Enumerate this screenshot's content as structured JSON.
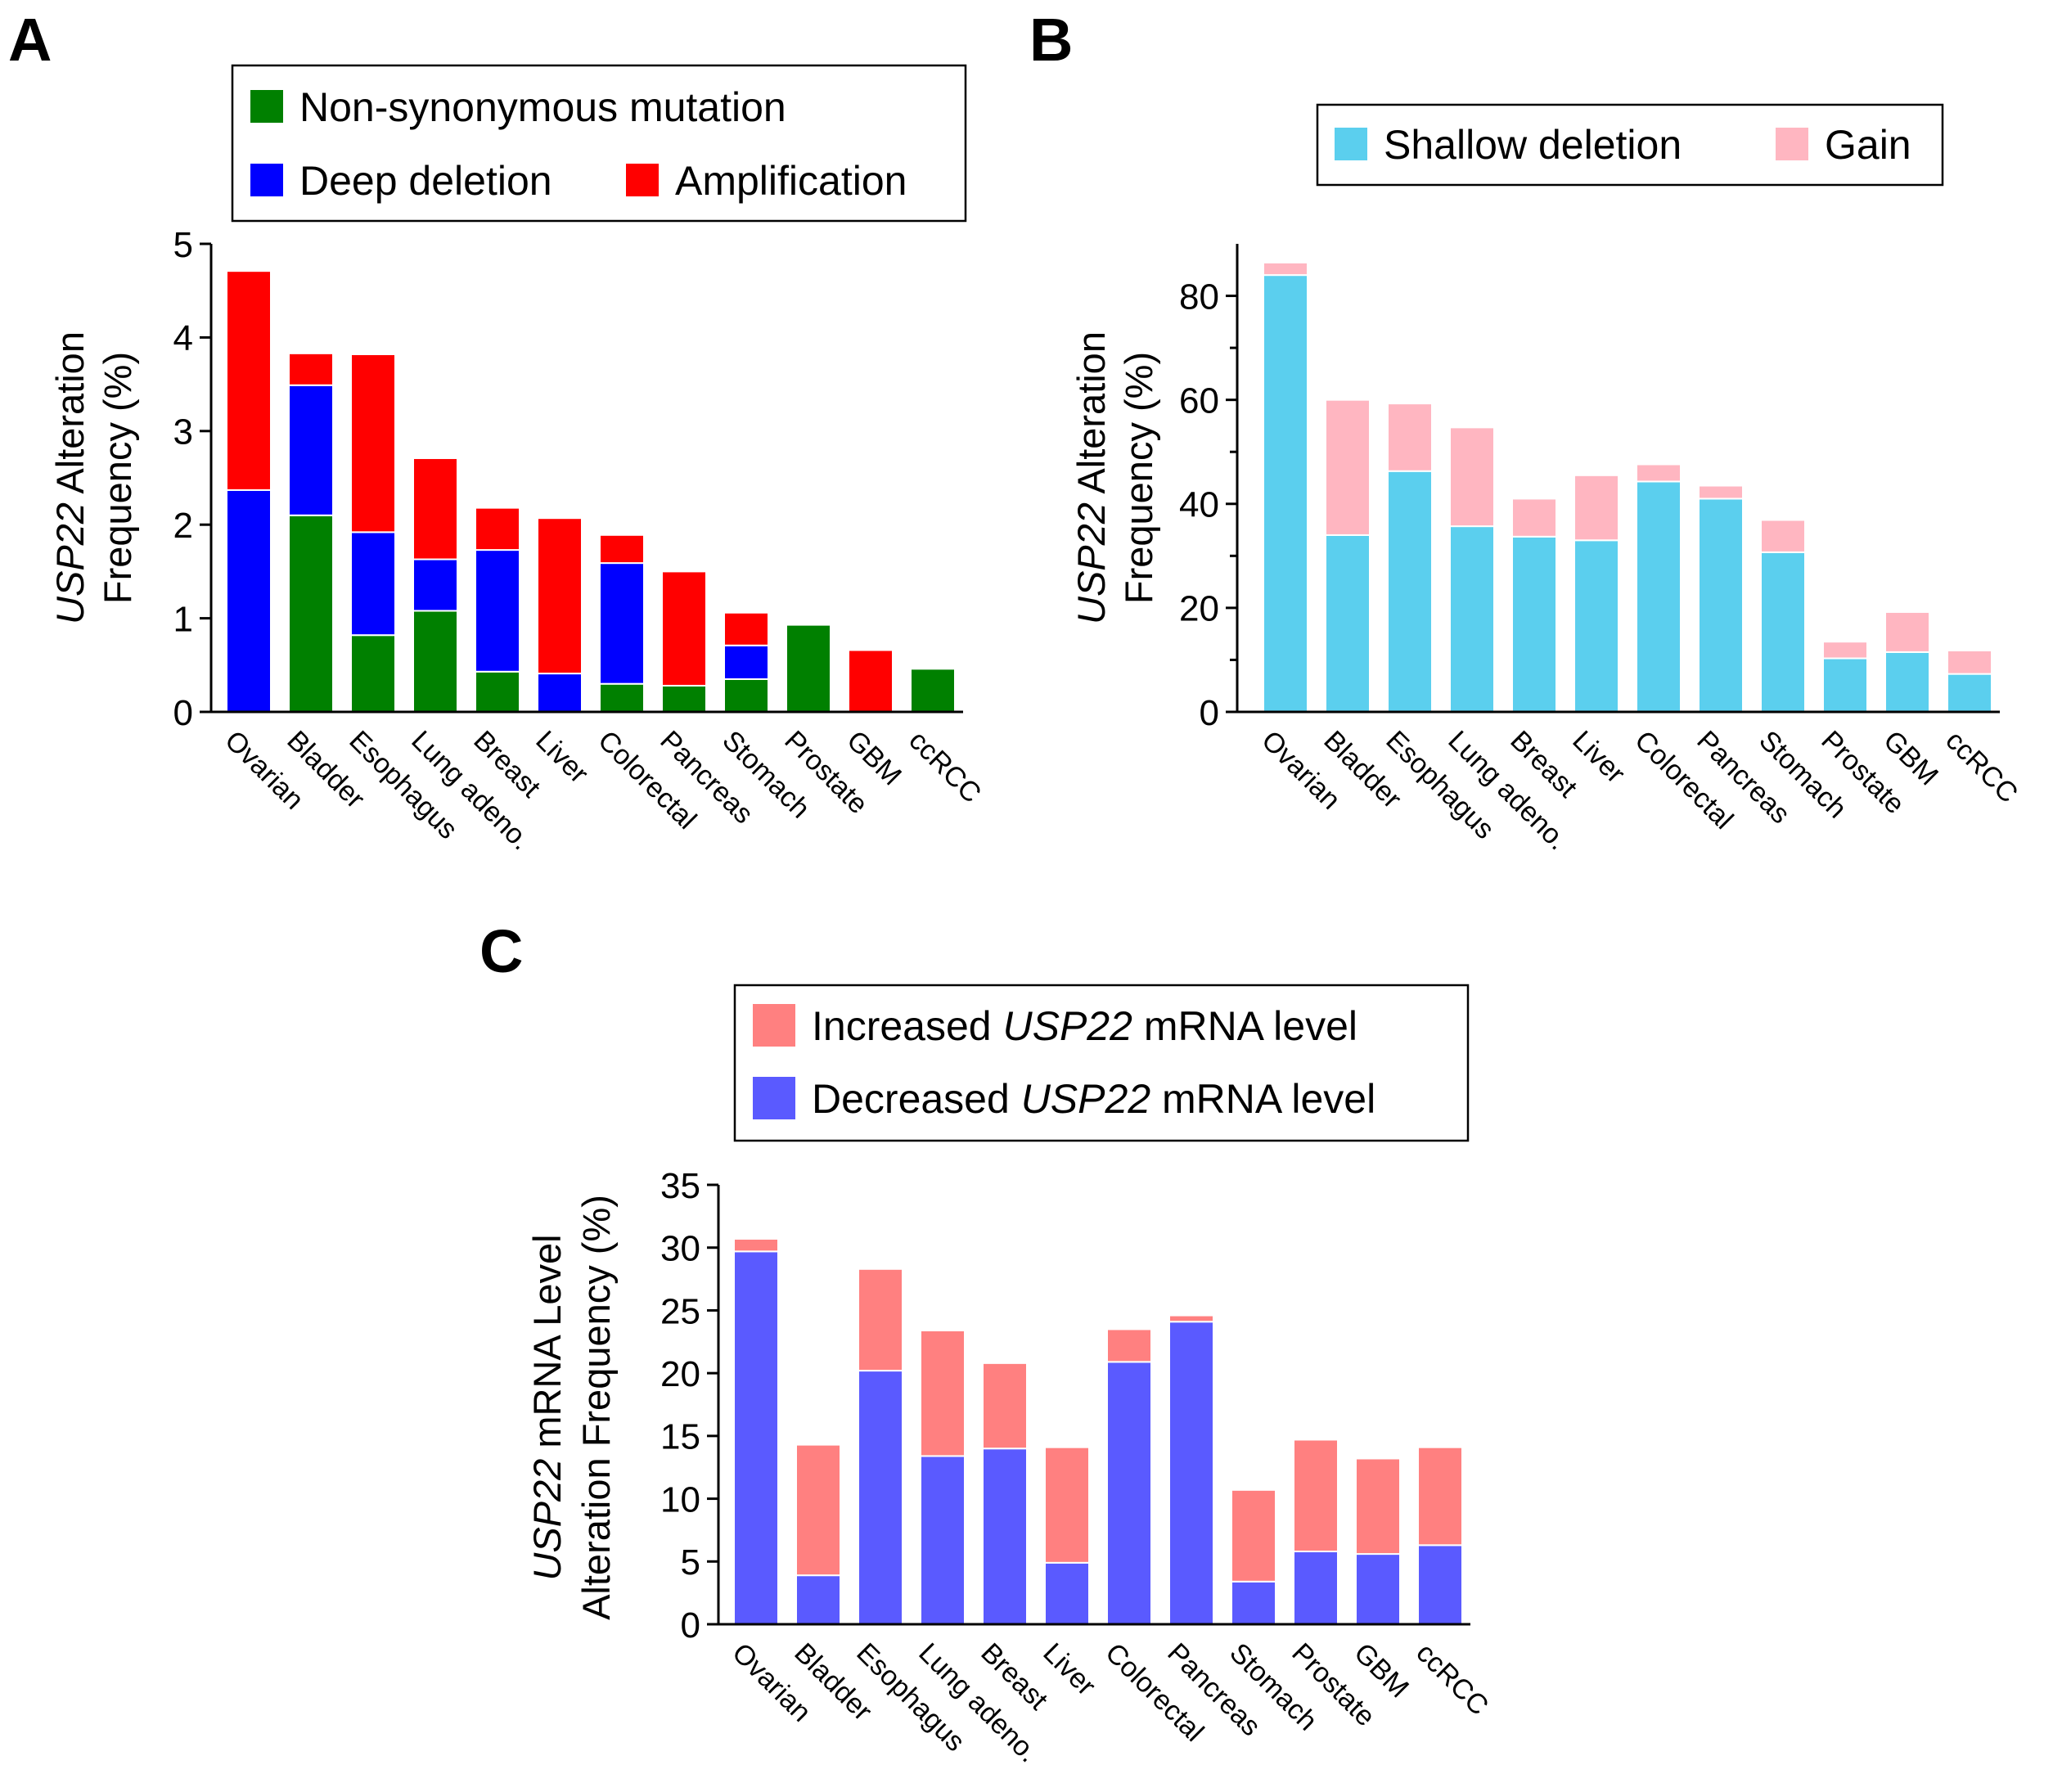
{
  "panels": [
    {
      "letter": "A"
    },
    {
      "letter": "B"
    },
    {
      "letter": "C"
    }
  ],
  "chart_data": [
    {
      "type": "bar",
      "stacked": true,
      "panel": "A",
      "categories": [
        "Ovarian",
        "Bladder",
        "Esophagus",
        "Lung adeno.",
        "Breast",
        "Liver",
        "Colorectal",
        "Pancreas",
        "Stomach",
        "Prostate",
        "GBM",
        "ccRCC"
      ],
      "ylabel_line1": {
        "italic": "USP22",
        "rest": " Alteration"
      },
      "ylabel_line2": "Frequency (%)",
      "ylim": [
        0,
        5
      ],
      "yticks": [
        "0",
        "1",
        "2",
        "3",
        "4",
        "5"
      ],
      "legend_position": "top",
      "series": [
        {
          "name": "Non-synonymous mutation",
          "color": "#008000",
          "values": [
            0,
            2.1,
            0.82,
            1.08,
            0.43,
            0,
            0.3,
            0.28,
            0.35,
            0.93,
            0,
            0.46
          ]
        },
        {
          "name": "Deep deletion",
          "color": "#0000ff",
          "values": [
            2.37,
            1.39,
            1.1,
            0.55,
            1.3,
            0.41,
            1.29,
            0,
            0.36,
            0,
            0,
            0
          ]
        },
        {
          "name": "Amplification",
          "color": "#ff0000",
          "values": [
            2.34,
            0.34,
            1.9,
            1.08,
            0.45,
            1.66,
            0.3,
            1.22,
            0.35,
            0,
            0.66,
            0
          ]
        }
      ],
      "legend_rows": [
        [
          "Non-synonymous mutation"
        ],
        [
          "Deep deletion",
          "Amplification"
        ]
      ]
    },
    {
      "type": "bar",
      "stacked": true,
      "panel": "B",
      "categories": [
        "Ovarian",
        "Bladder",
        "Esophagus",
        "Lung adeno.",
        "Breast",
        "Liver",
        "Colorectal",
        "Pancreas",
        "Stomach",
        "Prostate",
        "GBM",
        "ccRCC"
      ],
      "ylabel_line1": {
        "italic": "USP22",
        "rest": " Alteration"
      },
      "ylabel_line2": "Frequency (%)",
      "ylim": [
        0,
        90
      ],
      "yticks": [
        "0",
        "20",
        "40",
        "60",
        "80"
      ],
      "legend_position": "top",
      "series": [
        {
          "name": "Shallow deletion",
          "color": "#5bcfee",
          "values": [
            84,
            34,
            46.3,
            35.7,
            33.7,
            33,
            44.3,
            41,
            30.7,
            10.3,
            11.5,
            7.3
          ]
        },
        {
          "name": "Gain",
          "color": "#ffb6c1",
          "values": [
            2.4,
            26,
            13,
            19,
            7.3,
            12.5,
            3.3,
            2.5,
            6.2,
            3.2,
            7.7,
            4.5
          ]
        }
      ],
      "legend_rows": [
        [
          "Shallow deletion",
          "Gain"
        ]
      ]
    },
    {
      "type": "bar",
      "stacked": true,
      "panel": "C",
      "categories": [
        "Ovarian",
        "Bladder",
        "Esophagus",
        "Lung adeno.",
        "Breast",
        "Liver",
        "Colorectal",
        "Pancreas",
        "Stomach",
        "Prostate",
        "GBM",
        "ccRCC"
      ],
      "ylabel_line1": {
        "italic": "USP22",
        "rest": " mRNA Level"
      },
      "ylabel_line2": "Alteration Frequency (%)",
      "ylim": [
        0,
        35
      ],
      "yticks": [
        "0",
        "5",
        "10",
        "15",
        "20",
        "25",
        "30",
        "35"
      ],
      "legend_position": "top",
      "series": [
        {
          "name": "Decreased USP22 mRNA level",
          "color": "#5a5aff",
          "values": [
            29.7,
            3.9,
            20.2,
            13.4,
            14.0,
            4.9,
            20.9,
            24.1,
            3.4,
            5.8,
            5.6,
            6.3
          ]
        },
        {
          "name": "Increased USP22 mRNA level",
          "color": "#ff8080",
          "values": [
            1.0,
            10.4,
            8.1,
            10.0,
            6.8,
            9.2,
            2.6,
            0.5,
            7.3,
            8.9,
            7.6,
            7.8
          ]
        }
      ],
      "legend_rows": [
        [
          "Increased USP22 mRNA level"
        ],
        [
          "Decreased USP22 mRNA level"
        ]
      ]
    }
  ]
}
